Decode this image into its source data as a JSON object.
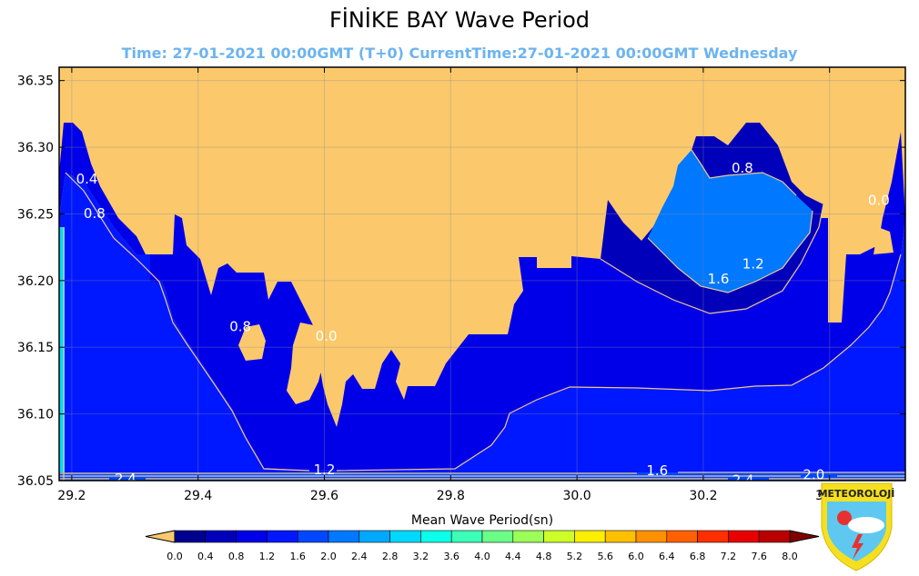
{
  "title": "FİNİKE BAY Wave Period",
  "subtitle": "Time: 27-01-2021 00:00GMT (T+0)  CurrentTime:27-01-2021 00:00GMT Wednesday",
  "logo_text": "METEOROLOJİ",
  "colors": {
    "land": "#fbc96c",
    "border": "#000000",
    "contour_line": "#f0c890",
    "contour_label": "#ffffff"
  },
  "chart_data": {
    "type": "heatmap",
    "title": "FİNİKE BAY Wave Period",
    "subtitle": "Time: 27-01-2021 00:00GMT (T+0)  CurrentTime:27-01-2021 00:00GMT Wednesday",
    "xlim": [
      29.18,
      30.52
    ],
    "ylim": [
      36.05,
      36.36
    ],
    "x_ticks": [
      29.2,
      29.4,
      29.6,
      29.8,
      30.0,
      30.2,
      30.4
    ],
    "x_tick_labels": [
      "29.2",
      "29.4",
      "29.6",
      "29.8",
      "30.0",
      "30.2",
      "30.4"
    ],
    "y_ticks": [
      36.05,
      36.1,
      36.15,
      36.2,
      36.25,
      36.3,
      36.35
    ],
    "y_tick_labels": [
      "36.05",
      "36.10",
      "36.15",
      "36.20",
      "36.25",
      "36.30",
      "36.35"
    ],
    "grid": true,
    "colorbar": {
      "label": "Mean Wave Period(sn)",
      "levels": [
        0.0,
        0.4,
        0.8,
        1.2,
        1.6,
        2.0,
        2.4,
        2.8,
        3.2,
        3.6,
        4.0,
        4.4,
        4.8,
        5.2,
        5.6,
        6.0,
        6.4,
        6.8,
        7.2,
        7.6,
        8.0
      ],
      "level_labels": [
        "0.0",
        "0.4",
        "0.8",
        "1.2",
        "1.6",
        "2.0",
        "2.4",
        "2.8",
        "3.2",
        "3.6",
        "4.0",
        "4.4",
        "4.8",
        "5.2",
        "5.6",
        "6.0",
        "6.4",
        "6.8",
        "7.2",
        "7.6",
        "8.0"
      ],
      "colors": [
        "#00008f",
        "#0000bb",
        "#0000e8",
        "#0018ff",
        "#0048ff",
        "#0078ff",
        "#00a8ff",
        "#00d8ff",
        "#0cffe8",
        "#3cffb8",
        "#6cff88",
        "#9cff58",
        "#ccff28",
        "#fcf000",
        "#ffc000",
        "#ff9000",
        "#ff6000",
        "#ff3000",
        "#e80000",
        "#b80000"
      ],
      "extend_low_color": "#fbc96c",
      "extend_high_color": "#800000"
    },
    "contour_labels": [
      {
        "text": "0.4",
        "x": 29.224,
        "y": 36.276
      },
      {
        "text": "0.8",
        "x": 29.236,
        "y": 36.25
      },
      {
        "text": "0.8",
        "x": 29.467,
        "y": 36.165
      },
      {
        "text": "0.0",
        "x": 29.603,
        "y": 36.158
      },
      {
        "text": "0.8",
        "x": 30.262,
        "y": 36.284
      },
      {
        "text": "0.0",
        "x": 30.478,
        "y": 36.26
      },
      {
        "text": "1.2",
        "x": 30.279,
        "y": 36.212
      },
      {
        "text": "1.6",
        "x": 30.224,
        "y": 36.201
      },
      {
        "text": "1.2",
        "x": 29.6,
        "y": 36.058
      },
      {
        "text": "1.6",
        "x": 30.127,
        "y": 36.057
      },
      {
        "text": "2.0",
        "x": 30.375,
        "y": 36.054
      },
      {
        "text": "2.4",
        "x": 29.285,
        "y": 36.051
      },
      {
        "text": "2.4",
        "x": 30.263,
        "y": 36.05
      }
    ]
  }
}
